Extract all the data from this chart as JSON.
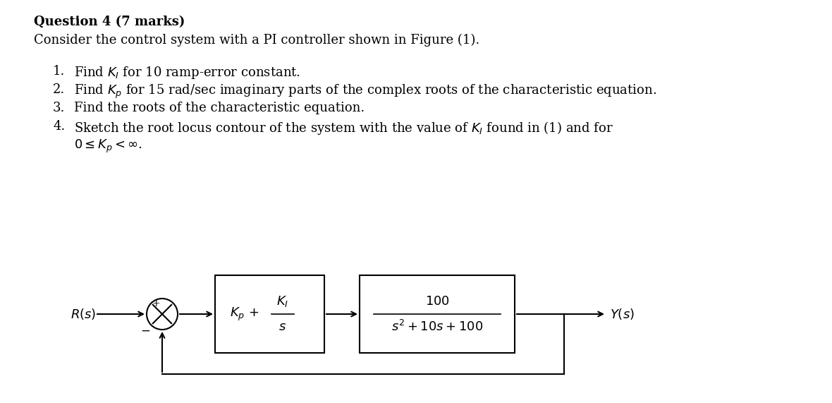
{
  "title_bold": "Question 4 (7 marks)",
  "subtitle": "Consider the control system with a PI controller shown in Figure (1).",
  "item1": "Find $K_I$ for 10 ramp-error constant.",
  "item2": "Find $K_p$ for 15 rad/sec imaginary parts of the complex roots of the characteristic equation.",
  "item3": "Find the roots of the characteristic equation.",
  "item4a": "Sketch the root locus contour of the system with the value of $K_I$ found in (1) and for",
  "item4b": "$0 \\leq K_p < \\infty$.",
  "bg_color": "#ffffff",
  "text_color": "#000000",
  "font_size_title": 13,
  "font_size_body": 13,
  "font_size_diagram": 13
}
